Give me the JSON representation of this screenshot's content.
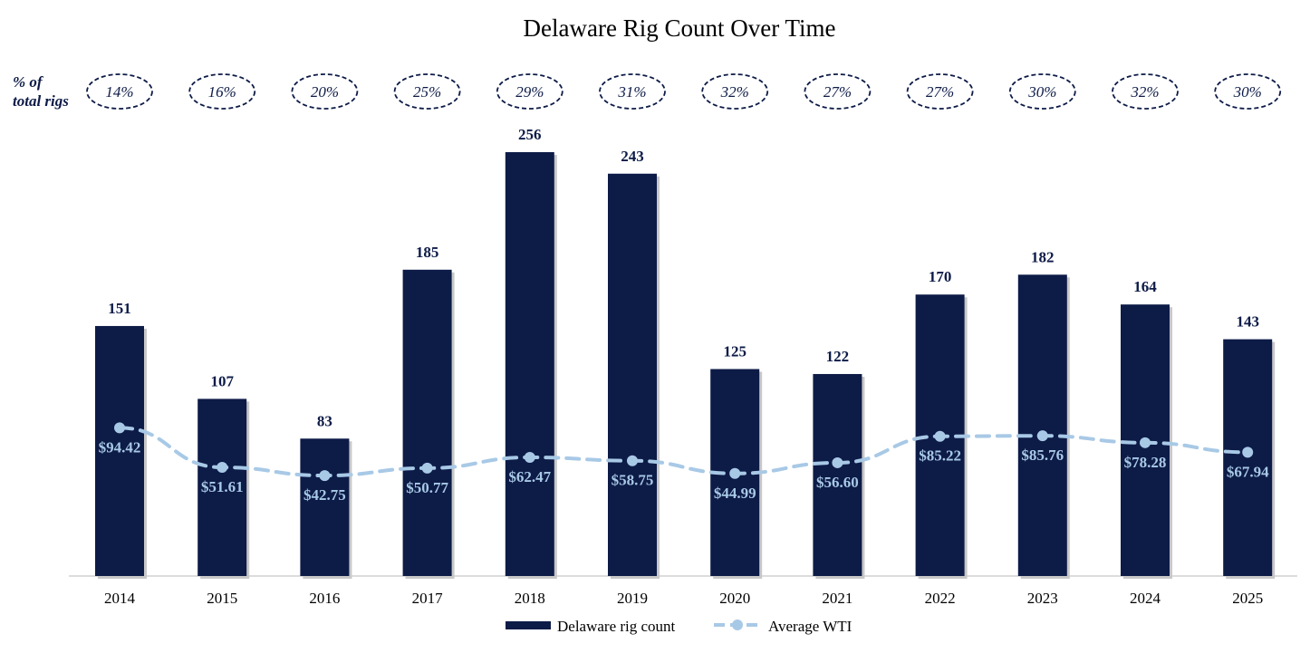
{
  "chart_data": {
    "type": "bar",
    "title": "Delaware Rig Count Over Time",
    "categories": [
      "2014",
      "2015",
      "2016",
      "2017",
      "2018",
      "2019",
      "2020",
      "2021",
      "2022",
      "2023",
      "2024",
      "2025"
    ],
    "series": [
      {
        "name": "Delaware rig count",
        "type": "bar",
        "color": "#0d1b47",
        "values": [
          151,
          107,
          83,
          185,
          256,
          243,
          125,
          122,
          170,
          182,
          164,
          143
        ]
      },
      {
        "name": "Average WTI",
        "type": "line",
        "color": "#a8c9e6",
        "values": [
          94.42,
          51.61,
          42.75,
          50.77,
          62.47,
          58.75,
          44.99,
          56.6,
          85.22,
          85.76,
          78.28,
          67.94
        ],
        "labels": [
          "$94.42",
          "$51.61",
          "$42.75",
          "$50.77",
          "$62.47",
          "$58.75",
          "$44.99",
          "$56.60",
          "$85.22",
          "$85.76",
          "$78.28",
          "$67.94"
        ]
      }
    ],
    "pct_of_total_rigs": {
      "caption_line1": "% of",
      "caption_line2": "total rigs",
      "values": [
        "14%",
        "16%",
        "20%",
        "25%",
        "29%",
        "31%",
        "32%",
        "27%",
        "27%",
        "30%",
        "32%",
        "30%"
      ]
    },
    "ylim_rigs": [
      0,
      256
    ],
    "ylim_wti": [
      0,
      180
    ],
    "legend_position": "bottom-center",
    "grid": false
  }
}
